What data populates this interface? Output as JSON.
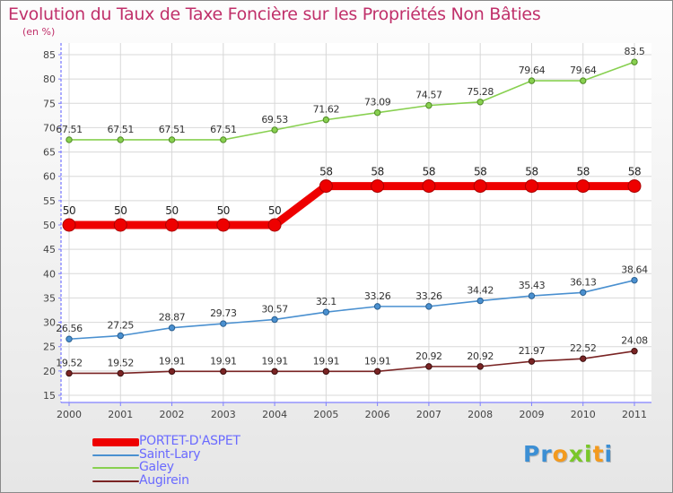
{
  "page": {
    "title": "Evolution du Taux de Taxe Foncière sur les Propriétés Non Bâties",
    "unit": "(en %)",
    "brand": "Proxiti"
  },
  "colors": {
    "title": "#c0306a",
    "axis": "#8080ff",
    "legend_text": "#6a6aff",
    "brand_letters": [
      "#3c8fd4",
      "#3c8fd4",
      "#f39a1e",
      "#79c72a",
      "#79c72a",
      "#f39a1e",
      "#3c8fd4"
    ]
  },
  "chart_data": {
    "type": "line",
    "title": "Evolution du Taux de Taxe Foncière sur les Propriétés Non Bâties",
    "ylabel": "(en %)",
    "xlabel": "",
    "ylim": [
      15,
      85
    ],
    "yticks": [
      15,
      20,
      25,
      30,
      35,
      40,
      45,
      50,
      55,
      60,
      65,
      70,
      75,
      80,
      85
    ],
    "grid": true,
    "legend_position": "bottom-left",
    "categories": [
      "2000",
      "2001",
      "2002",
      "2003",
      "2004",
      "2005",
      "2006",
      "2007",
      "2008",
      "2009",
      "2010",
      "2011"
    ],
    "series": [
      {
        "name": "PORTET-D'ASPET",
        "color": "#ee0000",
        "values": [
          50,
          50,
          50,
          50,
          50,
          58,
          58,
          58,
          58,
          58,
          58,
          58
        ],
        "labels": [
          "50",
          "50",
          "50",
          "50",
          "50",
          "58",
          "58",
          "58",
          "58",
          "58",
          "58",
          "58"
        ]
      },
      {
        "name": "Saint-Lary",
        "color": "#4a90d0",
        "values": [
          26.56,
          27.25,
          28.87,
          29.73,
          30.57,
          32.1,
          33.26,
          33.26,
          34.42,
          35.43,
          36.13,
          38.64
        ],
        "labels": [
          "26.56",
          "27.25",
          "28.87",
          "29.73",
          "30.57",
          "32.1",
          "33.26",
          "33.26",
          "34.42",
          "35.43",
          "36.13",
          "38.64"
        ]
      },
      {
        "name": "Galey",
        "color": "#88d050",
        "values": [
          67.51,
          67.51,
          67.51,
          67.51,
          69.53,
          71.62,
          73.09,
          74.57,
          75.28,
          79.64,
          79.64,
          83.5
        ],
        "labels": [
          "67.51",
          "67.51",
          "67.51",
          "67.51",
          "69.53",
          "71.62",
          "73.09",
          "74.57",
          "75.28",
          "79.64",
          "79.64",
          "83.5"
        ]
      },
      {
        "name": "Augirein",
        "color": "#7a2424",
        "values": [
          19.52,
          19.52,
          19.91,
          19.91,
          19.91,
          19.91,
          19.91,
          20.92,
          20.92,
          21.97,
          22.52,
          24.08
        ],
        "labels": [
          "19.52",
          "19.52",
          "19.91",
          "19.91",
          "19.91",
          "19.91",
          "19.91",
          "20.92",
          "20.92",
          "21.97",
          "22.52",
          "24.08"
        ]
      }
    ]
  }
}
